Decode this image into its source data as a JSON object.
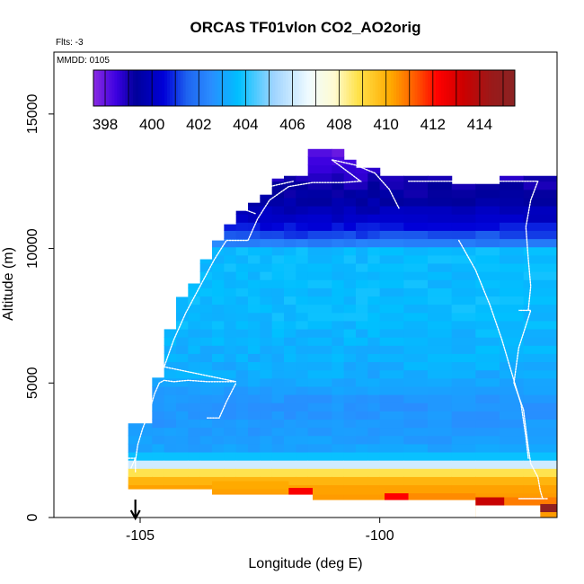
{
  "chart_data": {
    "type": "heatmap",
    "title": "ORCAS TF01vlon CO2_AO2orig",
    "flights_label": "Flts: -3",
    "date_label": "MMDD: 0105",
    "xlabel": "Longitude (deg E)",
    "ylabel": "Altitude (m)",
    "xlim": [
      -106.8,
      -96.3
    ],
    "ylim": [
      0,
      17300
    ],
    "x_ticks": [
      -105,
      -100
    ],
    "x_tick_labels": [
      "-105",
      "-100"
    ],
    "y_ticks": [
      0,
      5000,
      10000,
      15000
    ],
    "y_tick_labels": [
      "0",
      "5000",
      "10000",
      "15000"
    ],
    "colorbar": {
      "range": [
        397.5,
        415.5
      ],
      "ticks": [
        398,
        400,
        402,
        404,
        406,
        408,
        410,
        412,
        414
      ],
      "tick_labels": [
        "398",
        "400",
        "402",
        "404",
        "406",
        "408",
        "410",
        "412",
        "414"
      ],
      "stops": [
        {
          "v": 397.5,
          "c": "#8a2be2"
        },
        {
          "v": 398.5,
          "c": "#3a00e0"
        },
        {
          "v": 399.3,
          "c": "#00009a"
        },
        {
          "v": 400.5,
          "c": "#0000d8"
        },
        {
          "v": 401.5,
          "c": "#1e64f0"
        },
        {
          "v": 402.5,
          "c": "#2a8cff"
        },
        {
          "v": 403.7,
          "c": "#00c0ff"
        },
        {
          "v": 405.2,
          "c": "#9fd4ff"
        },
        {
          "v": 406.7,
          "c": "#f0fbff"
        },
        {
          "v": 407.8,
          "c": "#fffbd0"
        },
        {
          "v": 408.8,
          "c": "#ffe24a"
        },
        {
          "v": 410.2,
          "c": "#ffaa00"
        },
        {
          "v": 411.3,
          "c": "#ff5500"
        },
        {
          "v": 412.2,
          "c": "#ff0000"
        },
        {
          "v": 413.3,
          "c": "#cc0000"
        },
        {
          "v": 414.5,
          "c": "#9a1a1a"
        },
        {
          "v": 415.5,
          "c": "#8b2323"
        }
      ]
    },
    "grid": {
      "x_step": 0.25,
      "y_step": 305,
      "columns": [
        {
          "x0": -105.25,
          "x1": -104.75,
          "top": 3500
        },
        {
          "x0": -104.75,
          "x1": -104.5,
          "top": 5200
        },
        {
          "x0": -104.5,
          "x1": -104.25,
          "top": 7000
        },
        {
          "x0": -104.25,
          "x1": -104.0,
          "top": 8200
        },
        {
          "x0": -104.0,
          "x1": -103.75,
          "top": 8700
        },
        {
          "x0": -103.75,
          "x1": -103.5,
          "top": 9600
        },
        {
          "x0": -103.5,
          "x1": -103.25,
          "top": 10300
        },
        {
          "x0": -103.25,
          "x1": -103.0,
          "top": 10900
        },
        {
          "x0": -103.0,
          "x1": -102.75,
          "top": 11400
        },
        {
          "x0": -102.75,
          "x1": -102.5,
          "top": 11700
        },
        {
          "x0": -102.5,
          "x1": -102.25,
          "top": 12000
        },
        {
          "x0": -102.25,
          "x1": -102.0,
          "top": 12600
        },
        {
          "x0": -102.0,
          "x1": -101.75,
          "top": 12700
        },
        {
          "x0": -101.75,
          "x1": -101.5,
          "top": 12700
        },
        {
          "x0": -101.5,
          "x1": -101.0,
          "top": 13700
        },
        {
          "x0": -101.0,
          "x1": -100.75,
          "top": 13700
        },
        {
          "x0": -100.75,
          "x1": -100.5,
          "top": 13300
        },
        {
          "x0": -100.5,
          "x1": -100.25,
          "top": 13000
        },
        {
          "x0": -100.25,
          "x1": -100.0,
          "top": 13000
        },
        {
          "x0": -100.0,
          "x1": -99.5,
          "top": 12700
        },
        {
          "x0": -99.5,
          "x1": -99.0,
          "top": 12700
        },
        {
          "x0": -99.0,
          "x1": -98.5,
          "top": 12700
        },
        {
          "x0": -98.5,
          "x1": -98.0,
          "top": 12400
        },
        {
          "x0": -98.0,
          "x1": -97.5,
          "top": 12400
        },
        {
          "x0": -97.5,
          "x1": -97.0,
          "top": 12700
        },
        {
          "x0": -97.0,
          "x1": -96.3,
          "top": 12700
        }
      ],
      "bottom_cells": [
        {
          "x0": -103.5,
          "x1": -101.9,
          "y0": 1050,
          "y1": 1350,
          "v": 410.2
        },
        {
          "x0": -101.9,
          "x1": -101.4,
          "y0": 850,
          "y1": 1100,
          "v": 412.3
        },
        {
          "x0": -101.4,
          "x1": -99.9,
          "y0": 850,
          "y1": 1100,
          "v": 410.3
        },
        {
          "x0": -99.9,
          "x1": -99.4,
          "y0": 650,
          "y1": 900,
          "v": 412.2
        },
        {
          "x0": -99.4,
          "x1": -98.0,
          "y0": 650,
          "y1": 900,
          "v": 410.6
        },
        {
          "x0": -98.0,
          "x1": -97.4,
          "y0": 450,
          "y1": 750,
          "v": 413.4
        },
        {
          "x0": -97.4,
          "x1": -96.3,
          "y0": 450,
          "y1": 750,
          "v": 410.8
        },
        {
          "x0": -96.65,
          "x1": -96.3,
          "y0": 200,
          "y1": 500,
          "v": 415.2
        }
      ],
      "profile": [
        {
          "y": 13700,
          "v": 397.9
        },
        {
          "y": 12800,
          "v": 398.8
        },
        {
          "y": 11800,
          "v": 399.5
        },
        {
          "y": 11000,
          "v": 400.3
        },
        {
          "y": 10300,
          "v": 401.6
        },
        {
          "y": 10000,
          "v": 403.6
        },
        {
          "y": 7500,
          "v": 403.6
        },
        {
          "y": 5200,
          "v": 403.2
        },
        {
          "y": 4300,
          "v": 402.7
        },
        {
          "y": 3300,
          "v": 402.8
        },
        {
          "y": 2600,
          "v": 403.0
        },
        {
          "y": 2200,
          "v": 404.0
        },
        {
          "y": 1950,
          "v": 406.4
        },
        {
          "y": 1750,
          "v": 408.4
        },
        {
          "y": 1550,
          "v": 409.4
        },
        {
          "y": 1350,
          "v": 410.0
        },
        {
          "y": 1000,
          "v": 410.4
        },
        {
          "y": 0,
          "v": 410.4
        }
      ]
    },
    "flight_track": [
      [
        -105.1,
        1700
      ],
      [
        -105.1,
        2100
      ],
      [
        -105.05,
        2700
      ],
      [
        -104.95,
        3300
      ],
      [
        -104.8,
        4000
      ],
      [
        -104.7,
        4600
      ],
      [
        -104.6,
        5000
      ],
      [
        -104.5,
        5100
      ],
      [
        -104.3,
        5050
      ],
      [
        -104.0,
        5100
      ],
      [
        -103.6,
        5050
      ],
      [
        -103.3,
        5050
      ],
      [
        -103.0,
        5050
      ],
      [
        -104.5,
        5600
      ],
      [
        -104.3,
        6600
      ],
      [
        -104.05,
        7600
      ],
      [
        -103.75,
        8600
      ],
      [
        -103.45,
        9600
      ],
      [
        -103.2,
        10300
      ],
      [
        -102.75,
        10300
      ],
      [
        -102.55,
        11100
      ],
      [
        -102.3,
        11800
      ],
      [
        -101.9,
        12300
      ],
      [
        -101.4,
        12450
      ],
      [
        -100.8,
        12450
      ],
      [
        -100.4,
        12500
      ],
      [
        -100.7,
        12900
      ],
      [
        -101.0,
        13300
      ],
      [
        -100.5,
        13100
      ],
      [
        -100.1,
        12800
      ],
      [
        -99.8,
        12200
      ],
      [
        -99.6,
        11500
      ]
    ],
    "track_west_loop": [
      [
        -103.6,
        3700
      ],
      [
        -103.35,
        3700
      ],
      [
        -103.2,
        4300
      ],
      [
        -103.0,
        5000
      ]
    ],
    "track_left_tail": [
      [
        -105.3,
        2200
      ],
      [
        -105.1,
        2200
      ],
      [
        -105.2,
        1800
      ]
    ],
    "track_upper_west": [
      [
        -102.6,
        11300
      ],
      [
        -102.9,
        11500
      ],
      [
        -102.7,
        12000
      ],
      [
        -102.3,
        12300
      ],
      [
        -101.8,
        12500
      ]
    ],
    "track_east": [
      [
        -99.4,
        12500
      ],
      [
        -97.0,
        12500
      ],
      [
        -96.7,
        12500
      ],
      [
        -96.85,
        11800
      ],
      [
        -96.95,
        10800
      ],
      [
        -96.9,
        9600
      ],
      [
        -96.85,
        8600
      ],
      [
        -96.9,
        7700
      ],
      [
        -97.1,
        7700
      ],
      [
        -96.85,
        7700
      ],
      [
        -97.1,
        6300
      ],
      [
        -97.2,
        5000
      ],
      [
        -97.0,
        4000
      ],
      [
        -96.95,
        3300
      ],
      [
        -96.9,
        2600
      ],
      [
        -96.85,
        2000
      ],
      [
        -96.7,
        1500
      ],
      [
        -96.65,
        1000
      ],
      [
        -96.6,
        700
      ],
      [
        -97.1,
        700
      ],
      [
        -96.5,
        700
      ]
    ],
    "track_east_descent": [
      [
        -98.35,
        10300
      ],
      [
        -98.0,
        9200
      ],
      [
        -97.7,
        7900
      ],
      [
        -97.45,
        6600
      ],
      [
        -97.25,
        5400
      ],
      [
        -97.05,
        4200
      ],
      [
        -96.95,
        3000
      ],
      [
        -96.9,
        2200
      ]
    ],
    "marker": {
      "x": -105.1,
      "label": "arrow"
    }
  }
}
